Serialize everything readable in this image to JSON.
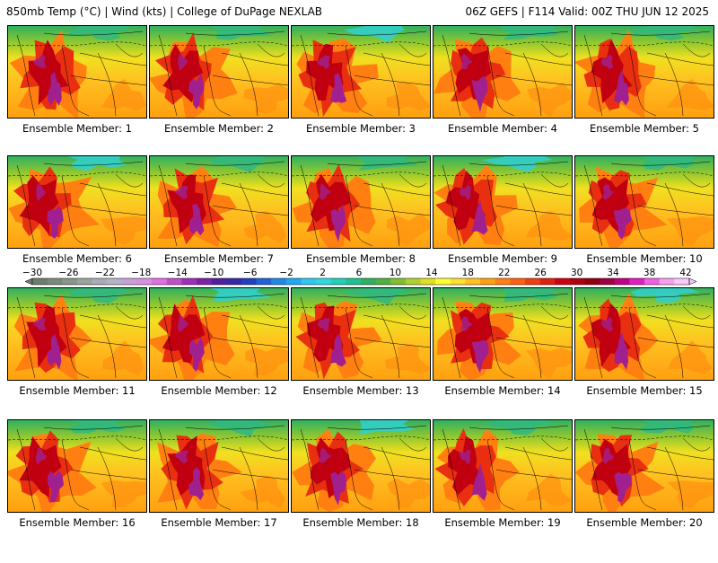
{
  "header": {
    "left_title": "850mb Temp (°C) | Wind (kts) | College of DuPage NEXLAB",
    "right_title": "06Z GEFS | F114 Valid: 00Z THU JUN 12 2025"
  },
  "panels": [
    {
      "label": "Ensemble Member: 1"
    },
    {
      "label": "Ensemble Member: 2"
    },
    {
      "label": "Ensemble Member: 3"
    },
    {
      "label": "Ensemble Member: 4"
    },
    {
      "label": "Ensemble Member: 5"
    },
    {
      "label": "Ensemble Member: 6"
    },
    {
      "label": "Ensemble Member: 7"
    },
    {
      "label": "Ensemble Member: 8"
    },
    {
      "label": "Ensemble Member: 9"
    },
    {
      "label": "Ensemble Member: 10"
    },
    {
      "label": "Ensemble Member: 11"
    },
    {
      "label": "Ensemble Member: 12"
    },
    {
      "label": "Ensemble Member: 13"
    },
    {
      "label": "Ensemble Member: 14"
    },
    {
      "label": "Ensemble Member: 15"
    },
    {
      "label": "Ensemble Member: 16"
    },
    {
      "label": "Ensemble Member: 17"
    },
    {
      "label": "Ensemble Member: 18"
    },
    {
      "label": "Ensemble Member: 19"
    },
    {
      "label": "Ensemble Member: 20"
    }
  ],
  "colorbar": {
    "tick_labels": [
      "−30",
      "−26",
      "−22",
      "−18",
      "−14",
      "−10",
      "−6",
      "−2",
      "2",
      "6",
      "10",
      "14",
      "18",
      "22",
      "26",
      "30",
      "34",
      "38",
      "42"
    ],
    "colors": [
      "#6e7d6e",
      "#7a8a7a",
      "#8a968a",
      "#9aa49a",
      "#a8acb8",
      "#b4b4c8",
      "#c8a0d8",
      "#d890e0",
      "#e070e0",
      "#c050c8",
      "#a030b8",
      "#8020a8",
      "#5020a0",
      "#3828a8",
      "#2040c0",
      "#2060d8",
      "#2088e8",
      "#20a8f0",
      "#30c8f0",
      "#30d8e0",
      "#20d0b8",
      "#20c090",
      "#30b060",
      "#50b040",
      "#80c030",
      "#b0d030",
      "#e0e020",
      "#ffff30",
      "#ffe030",
      "#ffc020",
      "#ffa010",
      "#ff8010",
      "#ff6010",
      "#f04010",
      "#e02010",
      "#d00010",
      "#b00010",
      "#900010",
      "#a00040",
      "#c00080",
      "#e020c0",
      "#f060e0",
      "#f8a0f0",
      "#f8c8f8"
    ]
  }
}
